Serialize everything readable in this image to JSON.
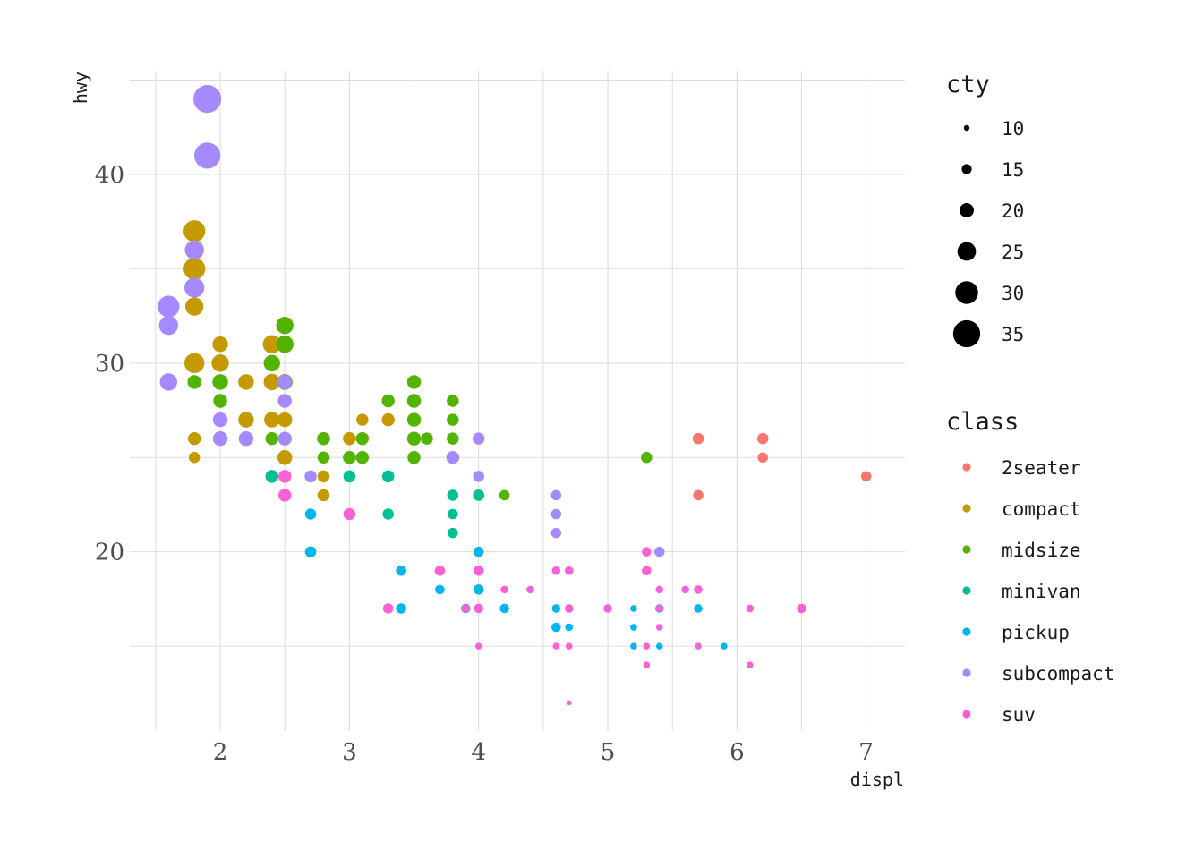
{
  "chart_data": {
    "type": "scatter",
    "title": "",
    "xlabel": "displ",
    "ylabel": "hwy",
    "xlim": [
      1.3,
      7.3
    ],
    "ylim": [
      10.5,
      45.5
    ],
    "x_ticks": [
      2,
      3,
      4,
      5,
      6,
      7
    ],
    "y_ticks": [
      20,
      30,
      40
    ],
    "grid": true,
    "size_legend": {
      "title": "cty",
      "values": [
        10,
        15,
        20,
        25,
        30,
        35
      ]
    },
    "color_legend": {
      "title": "class",
      "items": [
        {
          "label": "2seater",
          "color": "#F8766D"
        },
        {
          "label": "compact",
          "color": "#C49A00"
        },
        {
          "label": "midsize",
          "color": "#53B400"
        },
        {
          "label": "minivan",
          "color": "#00C094"
        },
        {
          "label": "pickup",
          "color": "#00B6EB"
        },
        {
          "label": "subcompact",
          "color": "#A58AFF"
        },
        {
          "label": "suv",
          "color": "#FB61D7"
        }
      ]
    },
    "points": [
      {
        "class": "2seater",
        "x": 5.7,
        "y": 26,
        "cty": 16
      },
      {
        "class": "2seater",
        "x": 5.7,
        "y": 23,
        "cty": 15
      },
      {
        "class": "2seater",
        "x": 6.2,
        "y": 26,
        "cty": 16
      },
      {
        "class": "2seater",
        "x": 6.2,
        "y": 25,
        "cty": 15
      },
      {
        "class": "2seater",
        "x": 7.0,
        "y": 24,
        "cty": 15
      },
      {
        "class": "compact",
        "x": 1.8,
        "y": 37,
        "cty": 28
      },
      {
        "class": "compact",
        "x": 1.8,
        "y": 35,
        "cty": 28
      },
      {
        "class": "compact",
        "x": 1.8,
        "y": 33,
        "cty": 24
      },
      {
        "class": "compact",
        "x": 1.8,
        "y": 30,
        "cty": 26
      },
      {
        "class": "compact",
        "x": 1.8,
        "y": 26,
        "cty": 18
      },
      {
        "class": "compact",
        "x": 1.8,
        "y": 25,
        "cty": 16
      },
      {
        "class": "compact",
        "x": 2.0,
        "y": 31,
        "cty": 21
      },
      {
        "class": "compact",
        "x": 2.0,
        "y": 30,
        "cty": 23
      },
      {
        "class": "compact",
        "x": 2.2,
        "y": 29,
        "cty": 21
      },
      {
        "class": "compact",
        "x": 2.2,
        "y": 27,
        "cty": 21
      },
      {
        "class": "compact",
        "x": 2.4,
        "y": 31,
        "cty": 24
      },
      {
        "class": "compact",
        "x": 2.4,
        "y": 29,
        "cty": 22
      },
      {
        "class": "compact",
        "x": 2.4,
        "y": 27,
        "cty": 21
      },
      {
        "class": "compact",
        "x": 2.5,
        "y": 29,
        "cty": 21
      },
      {
        "class": "compact",
        "x": 2.5,
        "y": 27,
        "cty": 20
      },
      {
        "class": "compact",
        "x": 2.5,
        "y": 25,
        "cty": 20
      },
      {
        "class": "compact",
        "x": 2.8,
        "y": 26,
        "cty": 18
      },
      {
        "class": "compact",
        "x": 2.8,
        "y": 25,
        "cty": 16
      },
      {
        "class": "compact",
        "x": 2.8,
        "y": 24,
        "cty": 17
      },
      {
        "class": "compact",
        "x": 2.8,
        "y": 23,
        "cty": 17
      },
      {
        "class": "compact",
        "x": 3.0,
        "y": 26,
        "cty": 18
      },
      {
        "class": "compact",
        "x": 3.1,
        "y": 27,
        "cty": 17
      },
      {
        "class": "compact",
        "x": 3.3,
        "y": 27,
        "cty": 18
      },
      {
        "class": "midsize",
        "x": 1.8,
        "y": 29,
        "cty": 19
      },
      {
        "class": "midsize",
        "x": 2.0,
        "y": 29,
        "cty": 21
      },
      {
        "class": "midsize",
        "x": 2.0,
        "y": 28,
        "cty": 19
      },
      {
        "class": "midsize",
        "x": 2.4,
        "y": 30,
        "cty": 22
      },
      {
        "class": "midsize",
        "x": 2.4,
        "y": 26,
        "cty": 18
      },
      {
        "class": "midsize",
        "x": 2.5,
        "y": 32,
        "cty": 23
      },
      {
        "class": "midsize",
        "x": 2.5,
        "y": 31,
        "cty": 23
      },
      {
        "class": "midsize",
        "x": 2.5,
        "y": 29,
        "cty": 21
      },
      {
        "class": "midsize",
        "x": 2.8,
        "y": 26,
        "cty": 18
      },
      {
        "class": "midsize",
        "x": 2.8,
        "y": 25,
        "cty": 17
      },
      {
        "class": "midsize",
        "x": 3.0,
        "y": 25,
        "cty": 18
      },
      {
        "class": "midsize",
        "x": 3.1,
        "y": 26,
        "cty": 18
      },
      {
        "class": "midsize",
        "x": 3.1,
        "y": 25,
        "cty": 18
      },
      {
        "class": "midsize",
        "x": 3.3,
        "y": 28,
        "cty": 18
      },
      {
        "class": "midsize",
        "x": 3.5,
        "y": 29,
        "cty": 19
      },
      {
        "class": "midsize",
        "x": 3.5,
        "y": 28,
        "cty": 19
      },
      {
        "class": "midsize",
        "x": 3.5,
        "y": 27,
        "cty": 19
      },
      {
        "class": "midsize",
        "x": 3.5,
        "y": 26,
        "cty": 19
      },
      {
        "class": "midsize",
        "x": 3.5,
        "y": 25,
        "cty": 18
      },
      {
        "class": "midsize",
        "x": 3.6,
        "y": 26,
        "cty": 17
      },
      {
        "class": "midsize",
        "x": 3.8,
        "y": 28,
        "cty": 17
      },
      {
        "class": "midsize",
        "x": 3.8,
        "y": 27,
        "cty": 17
      },
      {
        "class": "midsize",
        "x": 3.8,
        "y": 26,
        "cty": 17
      },
      {
        "class": "midsize",
        "x": 4.0,
        "y": 23,
        "cty": 16
      },
      {
        "class": "midsize",
        "x": 4.2,
        "y": 23,
        "cty": 15
      },
      {
        "class": "midsize",
        "x": 5.3,
        "y": 25,
        "cty": 16
      },
      {
        "class": "minivan",
        "x": 2.4,
        "y": 24,
        "cty": 18
      },
      {
        "class": "minivan",
        "x": 3.0,
        "y": 24,
        "cty": 17
      },
      {
        "class": "minivan",
        "x": 3.3,
        "y": 24,
        "cty": 17
      },
      {
        "class": "minivan",
        "x": 3.3,
        "y": 22,
        "cty": 16
      },
      {
        "class": "minivan",
        "x": 3.8,
        "y": 23,
        "cty": 16
      },
      {
        "class": "minivan",
        "x": 3.8,
        "y": 22,
        "cty": 15
      },
      {
        "class": "minivan",
        "x": 3.8,
        "y": 21,
        "cty": 15
      },
      {
        "class": "minivan",
        "x": 4.0,
        "y": 23,
        "cty": 16
      },
      {
        "class": "pickup",
        "x": 2.7,
        "y": 22,
        "cty": 16
      },
      {
        "class": "pickup",
        "x": 2.7,
        "y": 20,
        "cty": 16
      },
      {
        "class": "pickup",
        "x": 3.4,
        "y": 19,
        "cty": 15
      },
      {
        "class": "pickup",
        "x": 3.4,
        "y": 17,
        "cty": 15
      },
      {
        "class": "pickup",
        "x": 3.7,
        "y": 18,
        "cty": 14
      },
      {
        "class": "pickup",
        "x": 3.9,
        "y": 17,
        "cty": 14
      },
      {
        "class": "pickup",
        "x": 4.0,
        "y": 20,
        "cty": 15
      },
      {
        "class": "pickup",
        "x": 4.0,
        "y": 18,
        "cty": 15
      },
      {
        "class": "pickup",
        "x": 4.2,
        "y": 17,
        "cty": 14
      },
      {
        "class": "pickup",
        "x": 4.6,
        "y": 17,
        "cty": 13
      },
      {
        "class": "pickup",
        "x": 4.6,
        "y": 16,
        "cty": 14
      },
      {
        "class": "pickup",
        "x": 4.7,
        "y": 16,
        "cty": 12
      },
      {
        "class": "pickup",
        "x": 5.2,
        "y": 17,
        "cty": 11
      },
      {
        "class": "pickup",
        "x": 5.2,
        "y": 16,
        "cty": 11
      },
      {
        "class": "pickup",
        "x": 5.2,
        "y": 15,
        "cty": 11
      },
      {
        "class": "pickup",
        "x": 5.4,
        "y": 17,
        "cty": 13
      },
      {
        "class": "pickup",
        "x": 5.4,
        "y": 15,
        "cty": 11
      },
      {
        "class": "pickup",
        "x": 5.7,
        "y": 17,
        "cty": 13
      },
      {
        "class": "pickup",
        "x": 5.9,
        "y": 15,
        "cty": 11
      },
      {
        "class": "subcompact",
        "x": 1.6,
        "y": 33,
        "cty": 28
      },
      {
        "class": "subcompact",
        "x": 1.6,
        "y": 32,
        "cty": 25
      },
      {
        "class": "subcompact",
        "x": 1.6,
        "y": 29,
        "cty": 23
      },
      {
        "class": "subcompact",
        "x": 1.8,
        "y": 36,
        "cty": 25
      },
      {
        "class": "subcompact",
        "x": 1.8,
        "y": 34,
        "cty": 26
      },
      {
        "class": "subcompact",
        "x": 1.9,
        "y": 44,
        "cty": 35
      },
      {
        "class": "subcompact",
        "x": 1.9,
        "y": 41,
        "cty": 33
      },
      {
        "class": "subcompact",
        "x": 2.0,
        "y": 27,
        "cty": 20
      },
      {
        "class": "subcompact",
        "x": 2.0,
        "y": 26,
        "cty": 20
      },
      {
        "class": "subcompact",
        "x": 2.2,
        "y": 26,
        "cty": 20
      },
      {
        "class": "subcompact",
        "x": 2.5,
        "y": 29,
        "cty": 20
      },
      {
        "class": "subcompact",
        "x": 2.5,
        "y": 28,
        "cty": 19
      },
      {
        "class": "subcompact",
        "x": 2.5,
        "y": 26,
        "cty": 19
      },
      {
        "class": "subcompact",
        "x": 2.7,
        "y": 24,
        "cty": 17
      },
      {
        "class": "subcompact",
        "x": 3.8,
        "y": 25,
        "cty": 18
      },
      {
        "class": "subcompact",
        "x": 4.0,
        "y": 26,
        "cty": 17
      },
      {
        "class": "subcompact",
        "x": 4.0,
        "y": 24,
        "cty": 16
      },
      {
        "class": "subcompact",
        "x": 4.6,
        "y": 23,
        "cty": 15
      },
      {
        "class": "subcompact",
        "x": 4.6,
        "y": 22,
        "cty": 15
      },
      {
        "class": "subcompact",
        "x": 4.6,
        "y": 21,
        "cty": 15
      },
      {
        "class": "subcompact",
        "x": 5.4,
        "y": 20,
        "cty": 15
      },
      {
        "class": "suv",
        "x": 2.5,
        "y": 24,
        "cty": 18
      },
      {
        "class": "suv",
        "x": 2.5,
        "y": 23,
        "cty": 18
      },
      {
        "class": "suv",
        "x": 3.0,
        "y": 22,
        "cty": 17
      },
      {
        "class": "suv",
        "x": 3.3,
        "y": 17,
        "cty": 15
      },
      {
        "class": "suv",
        "x": 3.7,
        "y": 19,
        "cty": 15
      },
      {
        "class": "suv",
        "x": 3.9,
        "y": 17,
        "cty": 13
      },
      {
        "class": "suv",
        "x": 4.0,
        "y": 19,
        "cty": 15
      },
      {
        "class": "suv",
        "x": 4.0,
        "y": 17,
        "cty": 14
      },
      {
        "class": "suv",
        "x": 4.0,
        "y": 15,
        "cty": 11
      },
      {
        "class": "suv",
        "x": 4.2,
        "y": 18,
        "cty": 12
      },
      {
        "class": "suv",
        "x": 4.4,
        "y": 18,
        "cty": 12
      },
      {
        "class": "suv",
        "x": 4.6,
        "y": 19,
        "cty": 13
      },
      {
        "class": "suv",
        "x": 4.6,
        "y": 15,
        "cty": 11
      },
      {
        "class": "suv",
        "x": 4.7,
        "y": 19,
        "cty": 13
      },
      {
        "class": "suv",
        "x": 4.7,
        "y": 17,
        "cty": 13
      },
      {
        "class": "suv",
        "x": 4.7,
        "y": 15,
        "cty": 11
      },
      {
        "class": "suv",
        "x": 4.7,
        "y": 12,
        "cty": 9
      },
      {
        "class": "suv",
        "x": 5.0,
        "y": 17,
        "cty": 13
      },
      {
        "class": "suv",
        "x": 5.3,
        "y": 20,
        "cty": 14
      },
      {
        "class": "suv",
        "x": 5.3,
        "y": 19,
        "cty": 14
      },
      {
        "class": "suv",
        "x": 5.3,
        "y": 15,
        "cty": 11
      },
      {
        "class": "suv",
        "x": 5.3,
        "y": 14,
        "cty": 11
      },
      {
        "class": "suv",
        "x": 5.4,
        "y": 18,
        "cty": 12
      },
      {
        "class": "suv",
        "x": 5.4,
        "y": 17,
        "cty": 12
      },
      {
        "class": "suv",
        "x": 5.4,
        "y": 16,
        "cty": 11
      },
      {
        "class": "suv",
        "x": 5.6,
        "y": 18,
        "cty": 12
      },
      {
        "class": "suv",
        "x": 5.7,
        "y": 18,
        "cty": 13
      },
      {
        "class": "suv",
        "x": 5.7,
        "y": 15,
        "cty": 11
      },
      {
        "class": "suv",
        "x": 6.1,
        "y": 17,
        "cty": 12
      },
      {
        "class": "suv",
        "x": 6.1,
        "y": 14,
        "cty": 11
      },
      {
        "class": "suv",
        "x": 6.5,
        "y": 17,
        "cty": 14
      }
    ]
  }
}
